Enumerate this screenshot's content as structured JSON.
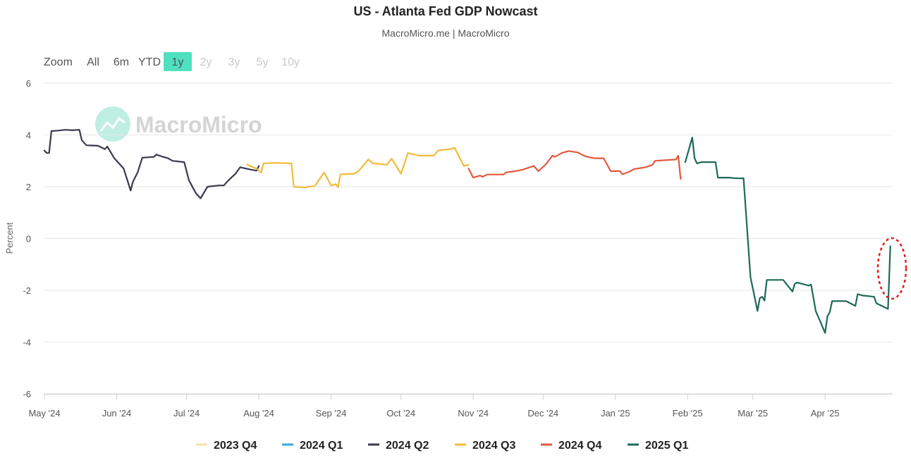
{
  "chart_data": {
    "type": "line",
    "title": "US - Atlanta Fed GDP Nowcast",
    "subtitle": "MacroMicro.me | MacroMicro",
    "watermark": "MacroMicro",
    "ylabel": "Percent",
    "xlabel": "",
    "ylim": [
      -6,
      6
    ],
    "yticks": [
      6,
      4,
      2,
      0,
      -2,
      -4,
      -6
    ],
    "xlim": [
      "2024-05-01",
      "2025-04-30"
    ],
    "xticks": [
      {
        "date": "2024-05-01",
        "label": "May '24"
      },
      {
        "date": "2024-06-01",
        "label": "Jun '24"
      },
      {
        "date": "2024-07-01",
        "label": "Jul '24"
      },
      {
        "date": "2024-08-01",
        "label": "Aug '24"
      },
      {
        "date": "2024-09-01",
        "label": "Sep '24"
      },
      {
        "date": "2024-10-01",
        "label": "Oct '24"
      },
      {
        "date": "2024-11-01",
        "label": "Nov '24"
      },
      {
        "date": "2024-12-01",
        "label": "Dec '24"
      },
      {
        "date": "2025-01-01",
        "label": "Jan '25"
      },
      {
        "date": "2025-02-01",
        "label": "Feb '25"
      },
      {
        "date": "2025-03-01",
        "label": "Mar '25"
      },
      {
        "date": "2025-04-01",
        "label": "Apr '25"
      }
    ],
    "zoom": {
      "label": "Zoom",
      "options": [
        "All",
        "6m",
        "YTD",
        "1y",
        "2y",
        "3y",
        "5y",
        "10y"
      ],
      "selected": "1y",
      "disabled": [
        "2y",
        "3y",
        "5y",
        "10y"
      ]
    },
    "annotation": "red dashed ellipse highlighting latest 2025 Q1 nowcast jump",
    "series": [
      {
        "name": "2023 Q4",
        "color": "#f2e2a8",
        "points": []
      },
      {
        "name": "2024 Q1",
        "color": "#3ba7dc",
        "points": []
      },
      {
        "name": "2024 Q2",
        "color": "#3a3a4e",
        "points": [
          [
            "2024-05-01",
            3.4
          ],
          [
            "2024-05-02",
            3.3
          ],
          [
            "2024-05-03",
            3.3
          ],
          [
            "2024-05-04",
            4.15
          ],
          [
            "2024-05-07",
            4.17
          ],
          [
            "2024-05-10",
            4.2
          ],
          [
            "2024-05-13",
            4.18
          ],
          [
            "2024-05-16",
            4.2
          ],
          [
            "2024-05-17",
            3.8
          ],
          [
            "2024-05-19",
            3.6
          ],
          [
            "2024-05-24",
            3.58
          ],
          [
            "2024-05-27",
            3.45
          ],
          [
            "2024-05-28",
            3.55
          ],
          [
            "2024-05-31",
            3.1
          ],
          [
            "2024-06-04",
            2.7
          ],
          [
            "2024-06-07",
            1.85
          ],
          [
            "2024-06-08",
            2.2
          ],
          [
            "2024-06-10",
            2.55
          ],
          [
            "2024-06-12",
            3.12
          ],
          [
            "2024-06-17",
            3.15
          ],
          [
            "2024-06-18",
            3.24
          ],
          [
            "2024-06-21",
            3.15
          ],
          [
            "2024-06-23",
            3.1
          ],
          [
            "2024-06-25",
            3.0
          ],
          [
            "2024-06-30",
            2.95
          ],
          [
            "2024-07-02",
            2.25
          ],
          [
            "2024-07-05",
            1.75
          ],
          [
            "2024-07-07",
            1.55
          ],
          [
            "2024-07-10",
            2.0
          ],
          [
            "2024-07-15",
            2.05
          ],
          [
            "2024-07-17",
            2.05
          ],
          [
            "2024-07-19",
            2.25
          ],
          [
            "2024-07-22",
            2.5
          ],
          [
            "2024-07-24",
            2.75
          ],
          [
            "2024-07-29",
            2.65
          ],
          [
            "2024-07-31",
            2.62
          ],
          [
            "2024-08-01",
            2.8
          ]
        ]
      },
      {
        "name": "2024 Q3",
        "color": "#f0bb3a",
        "points": [
          [
            "2024-07-27",
            2.85
          ],
          [
            "2024-07-31",
            2.7
          ],
          [
            "2024-08-02",
            2.55
          ],
          [
            "2024-08-03",
            2.9
          ],
          [
            "2024-08-08",
            2.92
          ],
          [
            "2024-08-15",
            2.9
          ],
          [
            "2024-08-16",
            2.0
          ],
          [
            "2024-08-21",
            1.97
          ],
          [
            "2024-08-22",
            2.0
          ],
          [
            "2024-08-25",
            2.02
          ],
          [
            "2024-08-29",
            2.55
          ],
          [
            "2024-09-01",
            2.05
          ],
          [
            "2024-09-03",
            2.1
          ],
          [
            "2024-09-04",
            1.98
          ],
          [
            "2024-09-05",
            2.48
          ],
          [
            "2024-09-11",
            2.5
          ],
          [
            "2024-09-13",
            2.62
          ],
          [
            "2024-09-17",
            3.05
          ],
          [
            "2024-09-19",
            2.9
          ],
          [
            "2024-09-25",
            2.85
          ],
          [
            "2024-09-27",
            3.08
          ],
          [
            "2024-10-01",
            2.5
          ],
          [
            "2024-10-04",
            3.3
          ],
          [
            "2024-10-09",
            3.2
          ],
          [
            "2024-10-15",
            3.2
          ],
          [
            "2024-10-17",
            3.4
          ],
          [
            "2024-10-22",
            3.45
          ],
          [
            "2024-10-24",
            3.5
          ],
          [
            "2024-10-28",
            2.8
          ],
          [
            "2024-10-30",
            2.85
          ]
        ]
      },
      {
        "name": "2024 Q4",
        "color": "#e25a3e",
        "points": [
          [
            "2024-10-30",
            2.7
          ],
          [
            "2024-11-01",
            2.35
          ],
          [
            "2024-11-04",
            2.43
          ],
          [
            "2024-11-05",
            2.38
          ],
          [
            "2024-11-07",
            2.47
          ],
          [
            "2024-11-14",
            2.47
          ],
          [
            "2024-11-15",
            2.55
          ],
          [
            "2024-11-19",
            2.6
          ],
          [
            "2024-11-22",
            2.65
          ],
          [
            "2024-11-27",
            2.8
          ],
          [
            "2024-11-29",
            2.6
          ],
          [
            "2024-12-02",
            2.85
          ],
          [
            "2024-12-05",
            3.2
          ],
          [
            "2024-12-06",
            3.15
          ],
          [
            "2024-12-09",
            3.3
          ],
          [
            "2024-12-12",
            3.38
          ],
          [
            "2024-12-16",
            3.32
          ],
          [
            "2024-12-18",
            3.22
          ],
          [
            "2024-12-20",
            3.15
          ],
          [
            "2024-12-23",
            3.1
          ],
          [
            "2024-12-27",
            3.1
          ],
          [
            "2024-12-30",
            2.6
          ],
          [
            "2025-01-03",
            2.6
          ],
          [
            "2025-01-04",
            2.48
          ],
          [
            "2025-01-07",
            2.58
          ],
          [
            "2025-01-09",
            2.68
          ],
          [
            "2025-01-14",
            2.75
          ],
          [
            "2025-01-17",
            2.85
          ],
          [
            "2025-01-18",
            3.0
          ],
          [
            "2025-01-27",
            3.05
          ],
          [
            "2025-01-28",
            3.2
          ],
          [
            "2025-01-29",
            2.3
          ]
        ]
      },
      {
        "name": "2025 Q1",
        "color": "#1d6a57",
        "points": [
          [
            "2025-01-31",
            2.95
          ],
          [
            "2025-02-03",
            3.9
          ],
          [
            "2025-02-04",
            3.1
          ],
          [
            "2025-02-05",
            2.9
          ],
          [
            "2025-02-07",
            2.95
          ],
          [
            "2025-02-13",
            2.95
          ],
          [
            "2025-02-14",
            2.35
          ],
          [
            "2025-02-19",
            2.35
          ],
          [
            "2025-02-21",
            2.33
          ],
          [
            "2025-02-24",
            2.32
          ],
          [
            "2025-02-25",
            2.33
          ],
          [
            "2025-02-28",
            -1.5
          ],
          [
            "2025-03-03",
            -2.8
          ],
          [
            "2025-03-04",
            -2.3
          ],
          [
            "2025-03-05",
            -2.25
          ],
          [
            "2025-03-06",
            -2.4
          ],
          [
            "2025-03-07",
            -1.6
          ],
          [
            "2025-03-14",
            -1.6
          ],
          [
            "2025-03-18",
            -2.05
          ],
          [
            "2025-03-19",
            -1.75
          ],
          [
            "2025-03-20",
            -1.7
          ],
          [
            "2025-03-25",
            -1.82
          ],
          [
            "2025-03-26",
            -1.78
          ],
          [
            "2025-03-28",
            -2.8
          ],
          [
            "2025-04-01",
            -3.65
          ],
          [
            "2025-04-02",
            -3.0
          ],
          [
            "2025-04-03",
            -2.85
          ],
          [
            "2025-04-04",
            -2.42
          ],
          [
            "2025-04-10",
            -2.42
          ],
          [
            "2025-04-14",
            -2.6
          ],
          [
            "2025-04-15",
            -2.15
          ],
          [
            "2025-04-17",
            -2.2
          ],
          [
            "2025-04-22",
            -2.25
          ],
          [
            "2025-04-23",
            -2.5
          ],
          [
            "2025-04-28",
            -2.72
          ],
          [
            "2025-04-29",
            -0.3
          ]
        ]
      }
    ]
  }
}
